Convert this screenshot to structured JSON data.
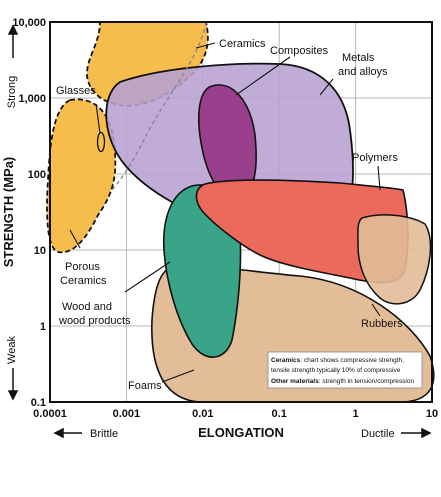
{
  "chart_data": {
    "type": "area",
    "title": "",
    "xlabel": "ELONGATION",
    "ylabel": "STRENGTH (MPa)",
    "x_scale": "log",
    "y_scale": "log",
    "xlim": [
      0.0001,
      10
    ],
    "ylim": [
      0.1,
      10000
    ],
    "grid": true,
    "x_ticks": [
      "0.0001",
      "0.001",
      "0.01",
      "0.1",
      "1",
      "10"
    ],
    "y_ticks": [
      "10,000",
      "1,000",
      "100",
      "10",
      "1",
      "0.1"
    ],
    "x_ends": {
      "left": "Brittle",
      "right": "Ductile"
    },
    "y_ends": {
      "top": "Strong",
      "bottom": "Weak"
    },
    "regions": [
      {
        "name": "Foams",
        "color": "#e2bd98"
      },
      {
        "name": "Porous Ceramics",
        "color": "#f6bd4c"
      },
      {
        "name": "Ceramics",
        "color": "#f6bd4c"
      },
      {
        "name": "Glasses",
        "color": "#f6bd4c"
      },
      {
        "name": "Metals and alloys",
        "color": "#b7a1d2"
      },
      {
        "name": "Composites",
        "color": "#9a3f8c"
      },
      {
        "name": "Wood and wood products",
        "color": "#3aa488"
      },
      {
        "name": "Polymers",
        "color": "#ec6a5c"
      },
      {
        "name": "Rubbers",
        "color": "#e2bd98"
      }
    ],
    "labels": {
      "ceramics": "Ceramics",
      "composites": "Composites",
      "metals_1": "Metals",
      "metals_2": "and alloys",
      "glasses": "Glasses",
      "polymers": "Polymers",
      "porous_1": "Porous",
      "porous_2": "Ceramics",
      "wood_1": "Wood and",
      "wood_2": "wood products",
      "rubbers": "Rubbers",
      "foams": "Foams"
    },
    "annotation": {
      "line1_bold": "Ceramics",
      "line1_rest": ": chart shows compressive strength,",
      "line2": "tensile strength typically 10% of compressive",
      "line3_bold": "Other materials",
      "line3_rest": ": strength in tension/compression"
    }
  }
}
